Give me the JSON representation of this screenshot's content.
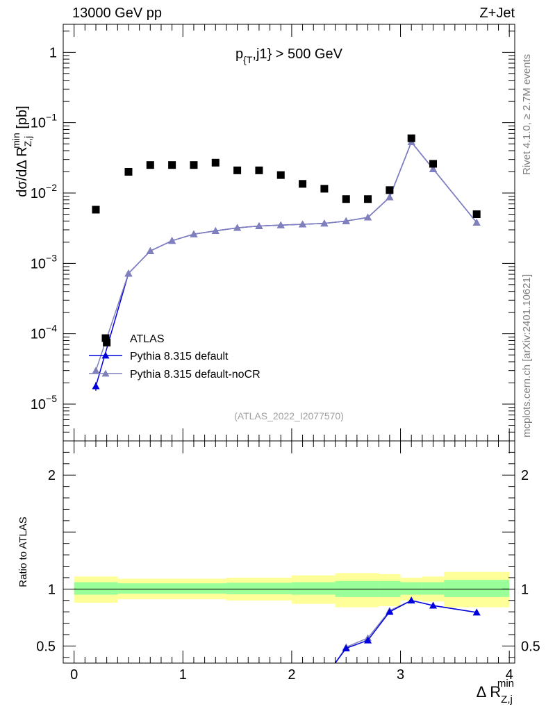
{
  "header": {
    "energy_label": "13000 GeV pp",
    "process_label": "Z+Jet"
  },
  "side_notes": {
    "rivet": "Rivet 4.1.0, ≥ 2.7M events",
    "mcplots": "mcplots.cern.ch [arXiv:2401.10621]"
  },
  "chart_data": [
    {
      "type": "scatter",
      "panel": "main",
      "y_scale": "log",
      "title": "p_{T},j1} > 500 GeV",
      "analysis_label": "(ATLAS_2022_I2077570)",
      "ylabel": "dσ/dΔ R^{min}_{Z,j} [pb]",
      "xlim": [
        -0.1,
        4.05
      ],
      "ylim": [
        3e-06,
        2.5
      ],
      "y_tick_labels": [
        {
          "value": 1e-05,
          "base": "10",
          "exp": "−5"
        },
        {
          "value": 0.0001,
          "base": "10",
          "exp": "−4"
        },
        {
          "value": 0.001,
          "base": "10",
          "exp": "−3"
        },
        {
          "value": 0.01,
          "base": "10",
          "exp": "−2"
        },
        {
          "value": 0.1,
          "base": "10",
          "exp": "−1"
        },
        {
          "value": 1,
          "base": "1",
          "exp": ""
        }
      ],
      "legend_position": "bottom-left",
      "series": [
        {
          "name": "ATLAS",
          "color": "#000000",
          "marker": "square",
          "x": [
            0.2,
            0.3,
            0.5,
            0.7,
            0.9,
            1.1,
            1.3,
            1.5,
            1.7,
            1.9,
            2.1,
            2.3,
            2.5,
            2.7,
            2.9,
            3.1,
            3.3,
            3.7
          ],
          "y": [
            0.0058,
            7.5e-05,
            0.02,
            0.025,
            0.025,
            0.025,
            0.027,
            0.021,
            0.021,
            0.018,
            0.0135,
            0.0115,
            0.0082,
            0.0082,
            0.011,
            0.06,
            0.026,
            0.005
          ]
        },
        {
          "name": "Pythia 8.315 default",
          "color": "#0000dd",
          "marker": "triangle",
          "x": [
            0.2,
            0.5,
            0.7,
            0.9,
            1.1,
            1.3,
            1.5,
            1.7,
            1.9,
            2.1,
            2.3,
            2.5,
            2.7,
            2.9,
            3.1,
            3.3,
            3.7
          ],
          "y": [
            1.8e-05,
            0.00072,
            0.0015,
            0.0021,
            0.0026,
            0.0029,
            0.0032,
            0.0034,
            0.0035,
            0.0036,
            0.0037,
            0.004,
            0.0045,
            0.0087,
            0.053,
            0.022,
            0.0038
          ]
        },
        {
          "name": "Pythia 8.315 default-noCR",
          "color": "#8080bb",
          "marker": "triangle",
          "x": [
            0.2,
            0.5,
            0.7,
            0.9,
            1.1,
            1.3,
            1.5,
            1.7,
            1.9,
            2.1,
            2.3,
            2.5,
            2.7,
            2.9,
            3.1,
            3.3,
            3.7
          ],
          "y": [
            3e-05,
            0.00072,
            0.0015,
            0.0021,
            0.0026,
            0.0029,
            0.0032,
            0.0034,
            0.0035,
            0.0036,
            0.0037,
            0.004,
            0.0045,
            0.0087,
            0.053,
            0.022,
            0.0038
          ]
        }
      ]
    },
    {
      "type": "line",
      "panel": "ratio",
      "ylabel": "Ratio to ATLAS",
      "xlabel": "Δ R^{min}_{Z,j}",
      "xlim": [
        -0.1,
        4.05
      ],
      "ylim": [
        0.35,
        2.3
      ],
      "x_tick_labels": [
        "0",
        "1",
        "2",
        "3",
        "4"
      ],
      "x_tick_values": [
        0,
        1,
        2,
        3,
        4
      ],
      "y_tick_labels": [
        "0.5",
        "1",
        "2"
      ],
      "y_tick_values": [
        0.5,
        1,
        2
      ],
      "reference_line": 1,
      "bands": [
        {
          "x0": 0.0,
          "x1": 0.4,
          "inner": [
            0.95,
            1.06
          ],
          "outer": [
            0.88,
            1.11
          ]
        },
        {
          "x0": 0.4,
          "x1": 1.4,
          "inner": [
            0.96,
            1.05
          ],
          "outer": [
            0.91,
            1.09
          ]
        },
        {
          "x0": 1.4,
          "x1": 2.0,
          "inner": [
            0.955,
            1.055
          ],
          "outer": [
            0.9,
            1.1
          ]
        },
        {
          "x0": 2.0,
          "x1": 2.4,
          "inner": [
            0.95,
            1.06
          ],
          "outer": [
            0.87,
            1.12
          ]
        },
        {
          "x0": 2.4,
          "x1": 2.8,
          "inner": [
            0.93,
            1.07
          ],
          "outer": [
            0.84,
            1.14
          ]
        },
        {
          "x0": 2.8,
          "x1": 3.0,
          "inner": [
            0.93,
            1.07
          ],
          "outer": [
            0.85,
            1.13
          ]
        },
        {
          "x0": 3.0,
          "x1": 3.2,
          "inner": [
            0.95,
            1.06
          ],
          "outer": [
            0.9,
            1.1
          ]
        },
        {
          "x0": 3.2,
          "x1": 3.4,
          "inner": [
            0.95,
            1.06
          ],
          "outer": [
            0.89,
            1.11
          ]
        },
        {
          "x0": 3.4,
          "x1": 4.0,
          "inner": [
            0.93,
            1.08
          ],
          "outer": [
            0.84,
            1.15
          ]
        }
      ],
      "series": [
        {
          "name": "Pythia 8.315 default",
          "color": "#0000dd",
          "x": [
            2.4,
            2.5,
            2.7,
            2.9,
            3.1,
            3.3,
            3.7
          ],
          "y": [
            0.35,
            0.48,
            0.55,
            0.8,
            0.9,
            0.855,
            0.795
          ]
        },
        {
          "name": "Pythia 8.315 default-noCR",
          "color": "#8080bb",
          "x": [
            2.4,
            2.5,
            2.7,
            2.9,
            3.1,
            3.3,
            3.7
          ],
          "y": [
            0.35,
            0.49,
            0.57,
            0.81,
            0.9,
            0.855,
            0.795
          ]
        }
      ]
    }
  ]
}
